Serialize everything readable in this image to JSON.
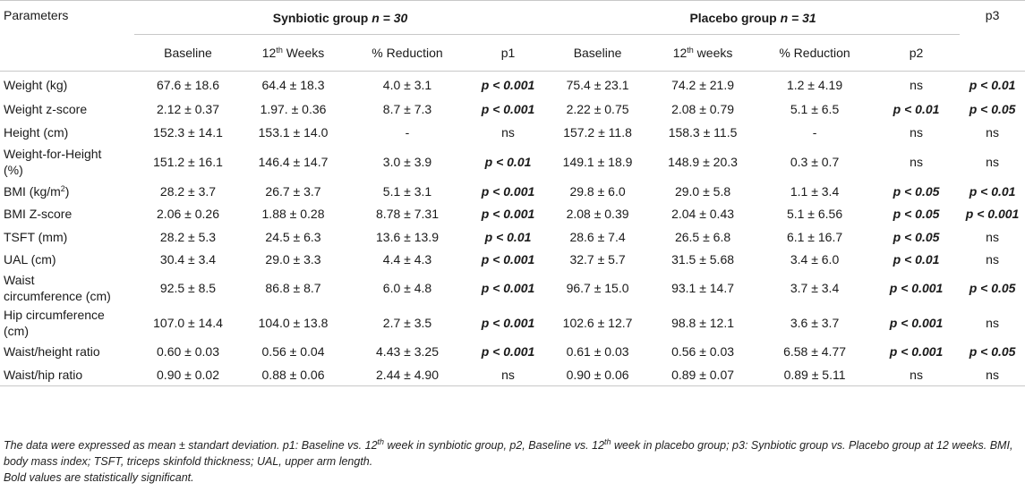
{
  "table": {
    "header": {
      "parameters": "Parameters",
      "synbiotic_group": "Synbiotic group",
      "synbiotic_n": "n = 30",
      "placebo_group": "Placebo group",
      "placebo_n": "n = 31",
      "p3": "p3",
      "baseline_s": "Baseline",
      "week_s_num": "12",
      "week_s_sup": "th",
      "week_s_text": " Weeks",
      "reduction_s": "% Reduction",
      "p1": "p1",
      "baseline_p": "Baseline",
      "week_p_num": "12",
      "week_p_sup": "th",
      "week_p_text": " weeks",
      "reduction_p": "% Reduction",
      "p2": "p2"
    },
    "rows": [
      {
        "param": "Weight (kg)",
        "cells": [
          "67.6 ± 18.6",
          "64.4 ± 18.3",
          "4.0 ± 3.1",
          "p < 0.001",
          "75.4 ± 23.1",
          "74.2 ± 21.9",
          "1.2 ± 4.19",
          "ns",
          "p < 0.01"
        ]
      },
      {
        "param": "Weight z-score",
        "cells": [
          "2.12 ± 0.37",
          "1.97. ± 0.36",
          "8.7 ± 7.3",
          "p < 0.001",
          "2.22 ± 0.75",
          "2.08 ± 0.79",
          "5.1 ± 6.5",
          "p < 0.01",
          "p < 0.05"
        ]
      },
      {
        "param": "Height (cm)",
        "cells": [
          "152.3 ± 14.1",
          "153.1 ± 14.0",
          "-",
          "ns",
          "157.2 ± 11.8",
          "158.3 ± 11.5",
          "-",
          "ns",
          "ns"
        ]
      },
      {
        "param_line1": "Weight-for-Height",
        "param_line2": "(%)",
        "cells": [
          "151.2 ± 16.1",
          "146.4 ± 14.7",
          "3.0 ± 3.9",
          "p < 0.01",
          "149.1 ± 18.9",
          "148.9 ± 20.3",
          "0.3 ± 0.7",
          "ns",
          "ns"
        ]
      },
      {
        "param_pre": "BMI (kg/m",
        "param_sup": "2",
        "param_post": ")",
        "cells": [
          "28.2 ± 3.7",
          "26.7 ± 3.7",
          "5.1 ± 3.1",
          "p < 0.001",
          "29.8 ± 6.0",
          "29.0 ± 5.8",
          "1.1 ± 3.4",
          "p < 0.05",
          "p < 0.01"
        ]
      },
      {
        "param": "BMI Z-score",
        "cells": [
          "2.06 ± 0.26",
          "1.88 ± 0.28",
          "8.78 ± 7.31",
          "p < 0.001",
          "2.08 ± 0.39",
          "2.04 ± 0.43",
          "5.1 ± 6.56",
          "p < 0.05",
          "p < 0.001"
        ]
      },
      {
        "param": "TSFT (mm)",
        "cells": [
          "28.2 ± 5.3",
          "24.5 ± 6.3",
          "13.6 ± 13.9",
          "p < 0.01",
          "28.6 ± 7.4",
          "26.5 ± 6.8",
          "6.1 ± 16.7",
          "p < 0.05",
          "ns"
        ]
      },
      {
        "param": "UAL (cm)",
        "cells": [
          "30.4 ± 3.4",
          "29.0 ± 3.3",
          "4.4 ± 4.3",
          "p < 0.001",
          "32.7 ± 5.7",
          "31.5 ± 5.68",
          "3.4 ± 6.0",
          "p < 0.01",
          "ns"
        ]
      },
      {
        "param_line1": "Waist",
        "param_line2": "circumference (cm)",
        "cells": [
          "92.5 ± 8.5",
          "86.8 ± 8.7",
          "6.0 ± 4.8",
          "p < 0.001",
          "96.7 ± 15.0",
          "93.1 ± 14.7",
          "3.7 ± 3.4",
          "p < 0.001",
          "p < 0.05"
        ]
      },
      {
        "param_line1": "Hip circumference",
        "param_line2": "(cm)",
        "cells": [
          "107.0 ± 14.4",
          "104.0 ± 13.8",
          "2.7 ± 3.5",
          "p < 0.001",
          "102.6 ± 12.7",
          "98.8 ± 12.1",
          "3.6 ± 3.7",
          "p < 0.001",
          "ns"
        ]
      },
      {
        "param": "Waist/height ratio",
        "cells": [
          "0.60 ± 0.03",
          "0.56 ± 0.04",
          "4.43 ± 3.25",
          "p < 0.001",
          "0.61 ± 0.03",
          "0.56 ± 0.03",
          "6.58 ± 4.77",
          "p < 0.001",
          "p < 0.05"
        ]
      },
      {
        "param": "Waist/hip ratio",
        "cells": [
          "0.90 ± 0.02",
          "0.88 ± 0.06",
          "2.44 ± 4.90",
          "ns",
          "0.90 ± 0.06",
          "0.89 ± 0.07",
          "0.89 ± 5.11",
          "ns",
          "ns"
        ]
      }
    ]
  },
  "notes": {
    "line1_a": "The data were expressed as mean ± standart deviation. p1: Baseline vs. 12",
    "line1_sup": "th",
    "line1_b": " week in synbiotic group, p2, Baseline vs. 12",
    "line1_sup2": "th",
    "line1_c": " week in placebo group; p3: Synbiotic group vs. Placebo group at 12 weeks. BMI, body mass index; TSFT, triceps skinfold thickness; UAL, upper arm length.",
    "line2": "Bold values are statistically significant."
  }
}
